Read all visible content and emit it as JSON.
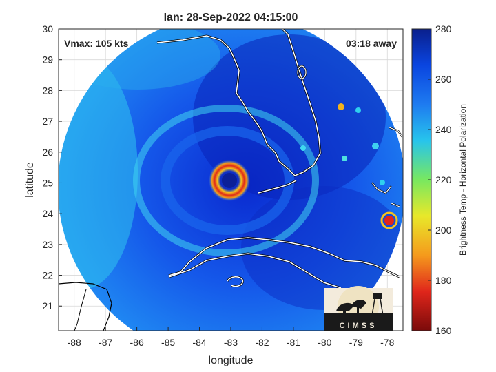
{
  "title": "Ian: 28-Sep-2022 04:15:00",
  "vmax_label": "Vmax: 105 kts",
  "time_away_label": "03:18 away",
  "xlabel": "longitude",
  "ylabel": "latitude",
  "colorbar": {
    "label": "Brightness Temp - Horizontal Polarization",
    "ticks": [
      "280",
      "260",
      "240",
      "220",
      "200",
      "180",
      "160"
    ],
    "colors": [
      "#0a1f8c",
      "#0a45e0",
      "#1e7bf0",
      "#27c4ec",
      "#78e860",
      "#e8e82a",
      "#f59a1c",
      "#e0261b",
      "#7a0a0a"
    ]
  },
  "logo_text": "CIMSS",
  "map": {
    "x_ticks": [
      "-88",
      "-87",
      "-86",
      "-85",
      "-84",
      "-83",
      "-82",
      "-81",
      "-80",
      "-79",
      "-78"
    ],
    "y_ticks": [
      "30",
      "29",
      "28",
      "27",
      "26",
      "25",
      "24",
      "23",
      "22",
      "21"
    ],
    "lon_range": [
      -88.5,
      -77.5
    ],
    "lat_range": [
      20.2,
      30
    ],
    "storm_center": {
      "lon": -83.1,
      "lat": 25.0
    },
    "grid": true
  }
}
